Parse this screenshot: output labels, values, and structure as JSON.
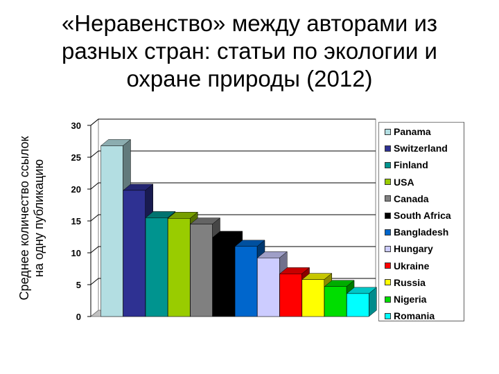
{
  "chart_data": {
    "type": "bar",
    "title_lines": [
      "«Неравенство» между авторами из",
      "разных стран: статьи по экологии и",
      "охране природы (2012)"
    ],
    "ylabel_lines": [
      "Среднее количество ссылок",
      "на одну публикацию"
    ],
    "xlabel": "",
    "ylim": [
      0,
      30
    ],
    "yticks": [
      "0",
      "5",
      "10",
      "15",
      "20",
      "25",
      "30"
    ],
    "grid": true,
    "legend_position": "right",
    "categories": [
      "Panama",
      "Switzerland",
      "Finland",
      "USA",
      "Canada",
      "South Africa",
      "Bangladesh",
      "Hungary",
      "Ukraine",
      "Russia",
      "Nigeria",
      "Romania"
    ],
    "values": [
      26.8,
      19.8,
      15.5,
      15.4,
      14.5,
      12.4,
      11.0,
      9.2,
      6.7,
      5.8,
      4.7,
      3.6
    ],
    "colors": [
      "#b3dee2",
      "#2e3192",
      "#00948f",
      "#99cc00",
      "#808080",
      "#000000",
      "#0066cc",
      "#ccccff",
      "#ff0000",
      "#ffff00",
      "#00dd00",
      "#00ffff"
    ]
  }
}
